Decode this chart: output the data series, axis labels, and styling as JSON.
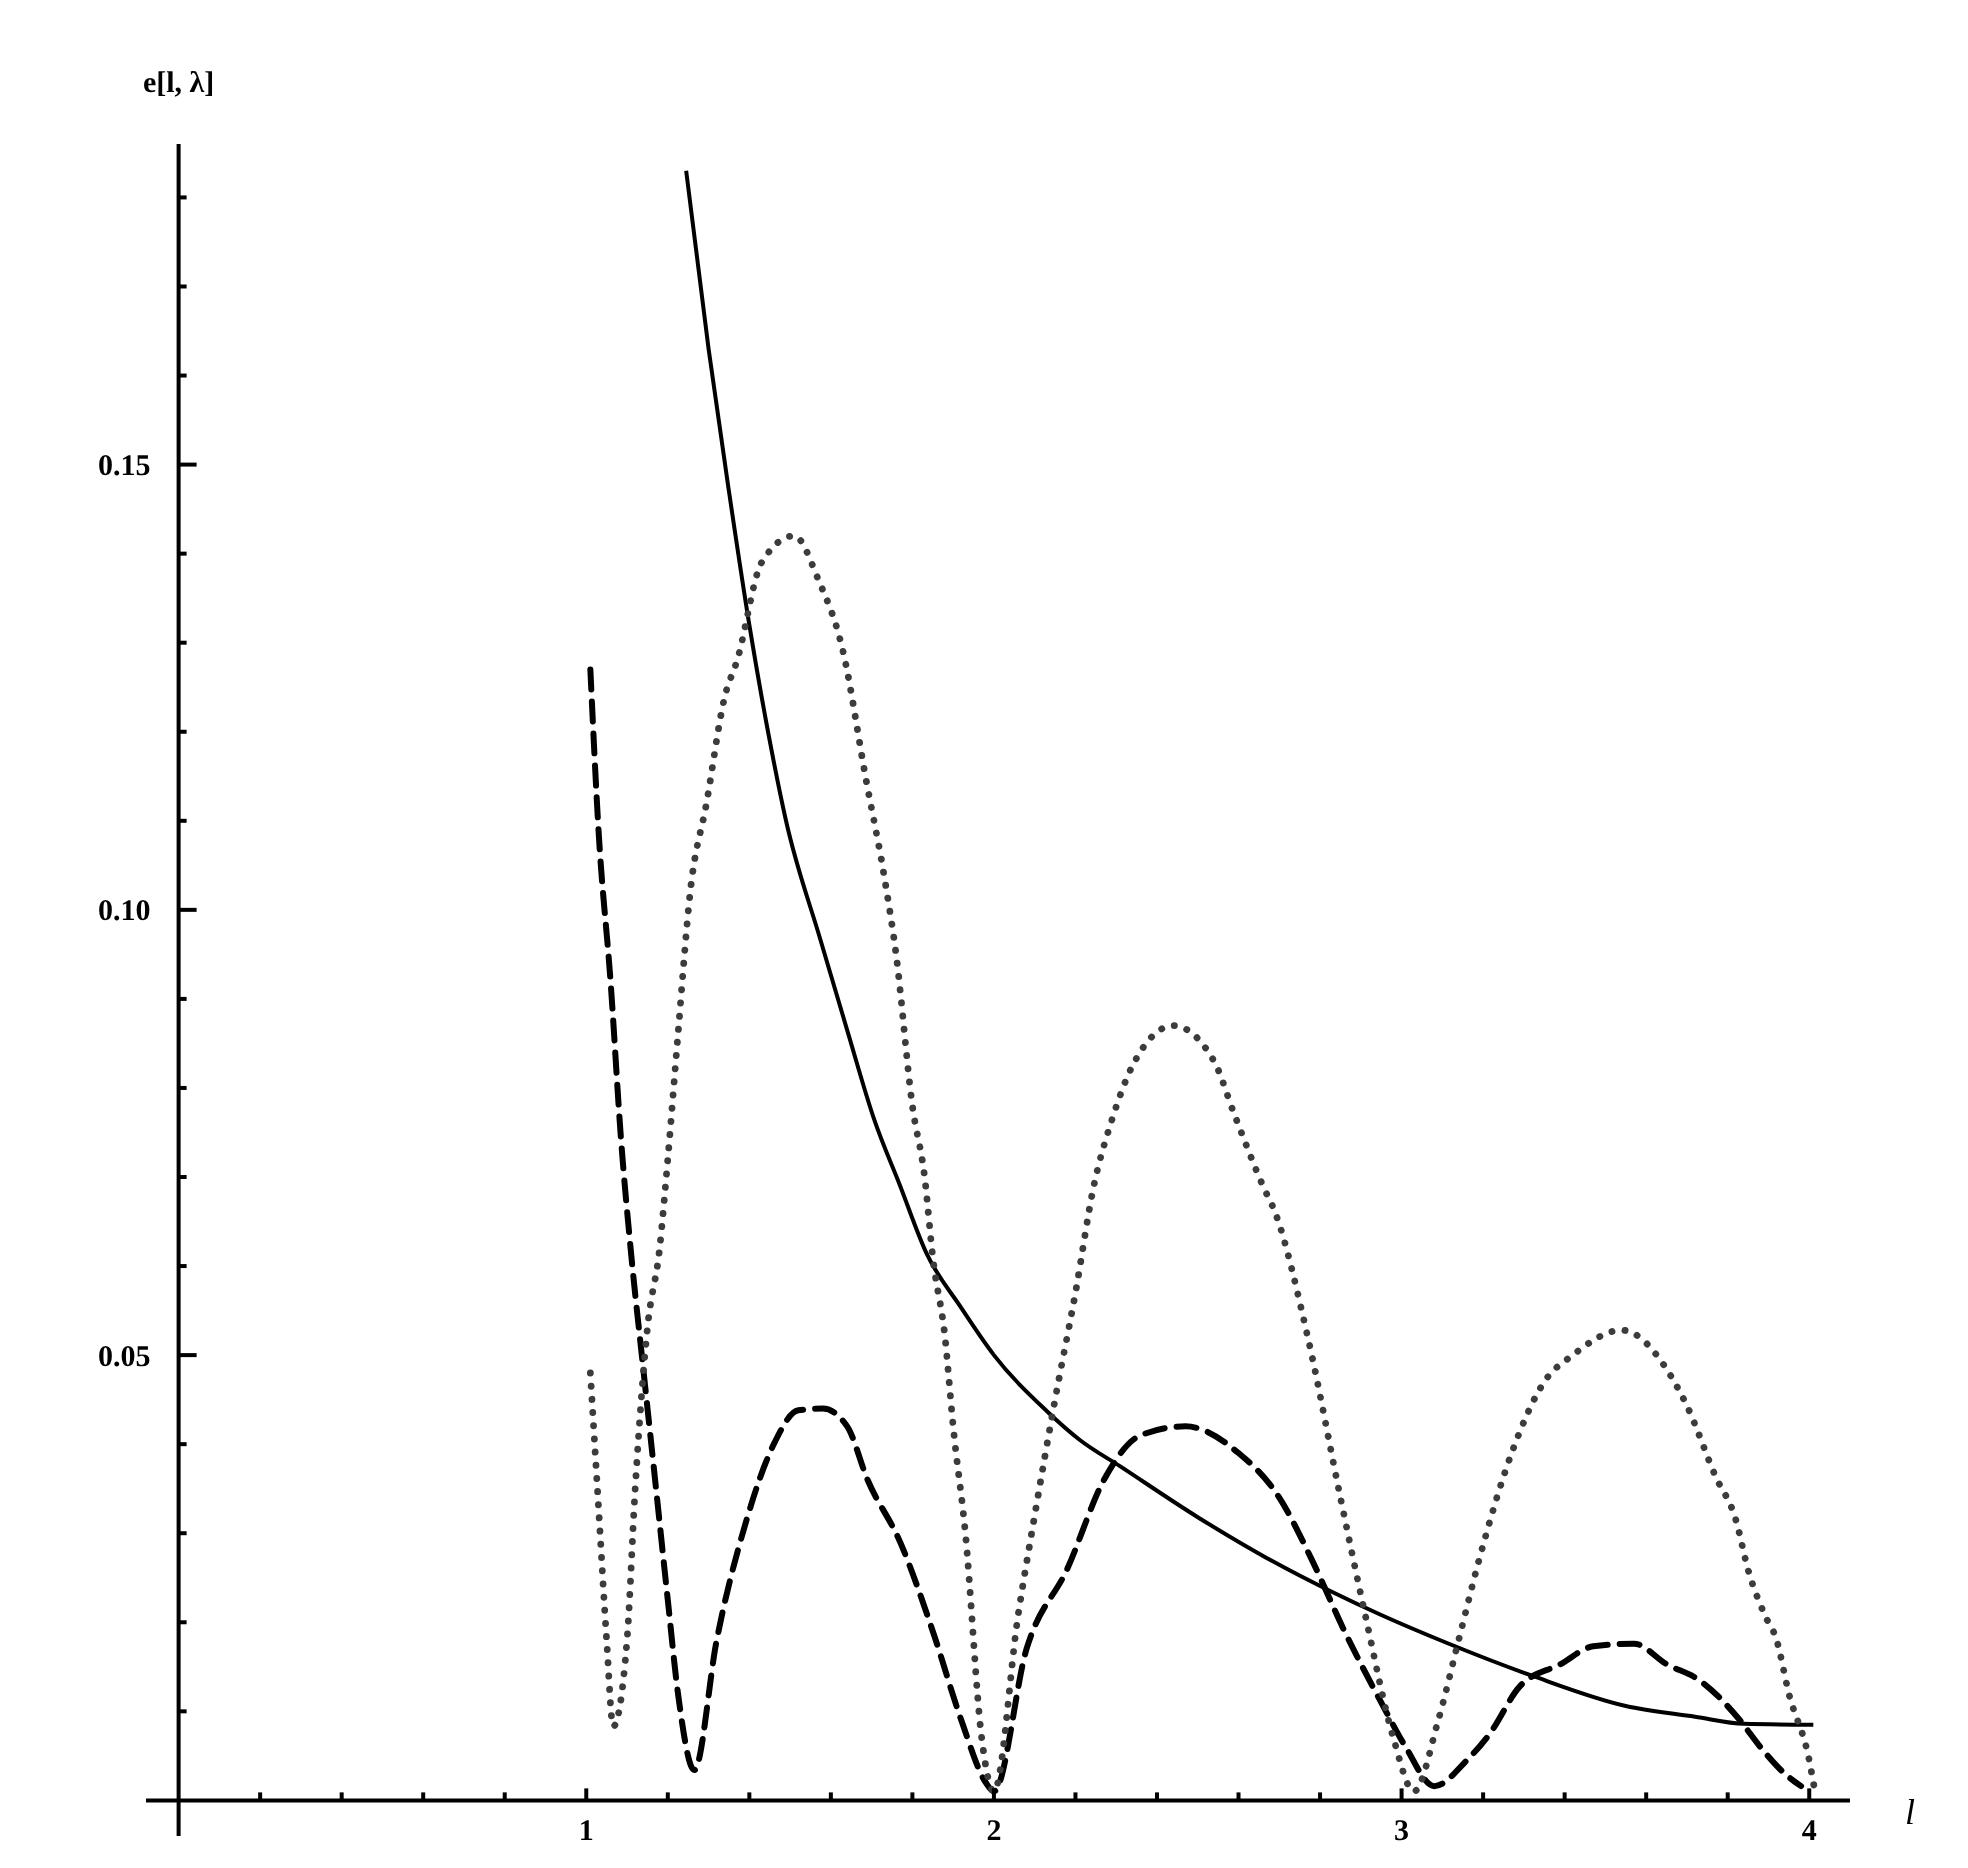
{
  "chart_data": {
    "type": "line",
    "xlabel": "l",
    "ylabel": "e[l, λ]",
    "xlim": [
      -0.08,
      4.1
    ],
    "ylim": [
      -0.004,
      0.186
    ],
    "xticks": [
      {
        "value": 0.2,
        "label": null
      },
      {
        "value": 0.4,
        "label": null
      },
      {
        "value": 0.6,
        "label": null
      },
      {
        "value": 0.8,
        "label": null
      },
      1,
      {
        "value": 1.2,
        "label": null
      },
      {
        "value": 1.4,
        "label": null
      },
      {
        "value": 1.6,
        "label": null
      },
      {
        "value": 1.8,
        "label": null
      },
      2,
      {
        "value": 2.2,
        "label": null
      },
      {
        "value": 2.4,
        "label": null
      },
      {
        "value": 2.6,
        "label": null
      },
      {
        "value": 2.8,
        "label": null
      },
      3,
      {
        "value": 3.2,
        "label": null
      },
      {
        "value": 3.4,
        "label": null
      },
      {
        "value": 3.6,
        "label": null
      },
      {
        "value": 3.8,
        "label": null
      },
      4
    ],
    "yticks": [
      {
        "value": 0.01,
        "label": null
      },
      {
        "value": 0.02,
        "label": null
      },
      {
        "value": 0.03,
        "label": null
      },
      {
        "value": 0.04,
        "label": null
      },
      {
        "value": 0.05,
        "label": "0.05"
      },
      {
        "value": 0.06,
        "label": null
      },
      {
        "value": 0.07,
        "label": null
      },
      {
        "value": 0.08,
        "label": null
      },
      {
        "value": 0.09,
        "label": null
      },
      {
        "value": 0.1,
        "label": "0.10"
      },
      {
        "value": 0.11,
        "label": null
      },
      {
        "value": 0.12,
        "label": null
      },
      {
        "value": 0.13,
        "label": null
      },
      {
        "value": 0.14,
        "label": null
      },
      0.15,
      {
        "value": 0.16,
        "label": null
      },
      {
        "value": 0.17,
        "label": null
      },
      {
        "value": 0.18,
        "label": null
      }
    ],
    "series": [
      {
        "color": "#000000",
        "line_style": "solid",
        "x": [
          1.245,
          1.3,
          1.35,
          1.4,
          1.45,
          1.49,
          1.574,
          1.64,
          1.706,
          1.77,
          1.835,
          1.917,
          2.0,
          2.13,
          2.21,
          2.31,
          2.5,
          2.67,
          2.83,
          2.946,
          3.11,
          3.32,
          3.55,
          3.72,
          3.84,
          4.01
        ],
        "values": [
          0.183,
          0.163,
          0.147,
          0.132,
          0.119,
          0.11,
          0.0967,
          0.0865,
          0.0765,
          0.069,
          0.0614,
          0.0555,
          0.05,
          0.0437,
          0.0405,
          0.0375,
          0.0318,
          0.0272,
          0.0234,
          0.0209,
          0.0177,
          0.014,
          0.0106,
          0.0094,
          0.0086,
          0.0085
        ]
      },
      {
        "color": "#000000",
        "line_style": "dashed",
        "x": [
          1.01,
          1.03,
          1.06,
          1.085,
          1.11,
          1.14,
          1.17,
          1.2,
          1.225,
          1.265,
          1.32,
          1.39,
          1.46,
          1.52,
          1.58,
          1.64,
          1.69,
          1.77,
          1.85,
          1.92,
          1.98,
          2.0,
          2.08,
          2.18,
          2.27,
          2.36,
          2.47,
          2.6,
          2.7,
          2.78,
          2.86,
          2.95,
          3.01,
          3.08,
          3.16,
          3.215,
          3.29,
          3.39,
          3.47,
          3.57,
          3.65,
          3.73,
          3.83,
          3.88,
          3.94,
          3.98
        ],
        "values": [
          0.127,
          0.109,
          0.0917,
          0.0744,
          0.0614,
          0.0484,
          0.0355,
          0.0225,
          0.012,
          0.0034,
          0.018,
          0.031,
          0.04,
          0.0438,
          0.044,
          0.042,
          0.036,
          0.029,
          0.019,
          0.009,
          0.002,
          0.001,
          0.017,
          0.026,
          0.036,
          0.041,
          0.042,
          0.039,
          0.034,
          0.027,
          0.019,
          0.011,
          0.006,
          0.0016,
          0.0045,
          0.0074,
          0.0128,
          0.0153,
          0.0173,
          0.0176,
          0.0153,
          0.0135,
          0.009,
          0.006,
          0.003,
          0.0016
        ]
      },
      {
        "color": "#3c3c3c",
        "line_style": "dotted",
        "x": [
          1.01,
          1.03,
          1.05,
          1.066,
          1.1,
          1.12,
          1.15,
          1.18,
          1.2,
          1.225,
          1.255,
          1.295,
          1.34,
          1.37,
          1.43,
          1.51,
          1.57,
          1.63,
          1.686,
          1.73,
          1.76,
          1.8,
          1.83,
          1.85,
          1.88,
          1.9,
          1.93,
          1.97,
          2.0,
          2.06,
          2.1,
          2.15,
          2.2,
          2.245,
          2.29,
          2.34,
          2.44,
          2.54,
          2.59,
          2.66,
          2.69,
          2.77,
          2.85,
          2.91,
          2.98,
          3.03,
          3.09,
          3.14,
          3.19,
          3.27,
          3.35,
          3.42,
          3.54,
          3.66,
          3.7,
          3.77,
          3.82,
          3.85,
          3.89,
          3.92,
          3.95,
          4.0,
          4.015
        ],
        "values": [
          0.048,
          0.033,
          0.018,
          0.0083,
          0.018,
          0.035,
          0.053,
          0.062,
          0.072,
          0.086,
          0.102,
          0.112,
          0.124,
          0.128,
          0.139,
          0.142,
          0.137,
          0.129,
          0.1147,
          0.104,
          0.095,
          0.078,
          0.07,
          0.061,
          0.052,
          0.042,
          0.03,
          0.007,
          0.001,
          0.021,
          0.032,
          0.045,
          0.057,
          0.069,
          0.0765,
          0.0825,
          0.087,
          0.083,
          0.077,
          0.069,
          0.066,
          0.052,
          0.034,
          0.021,
          0.007,
          0.001,
          0.009,
          0.018,
          0.027,
          0.039,
          0.047,
          0.05,
          0.0528,
          0.0477,
          0.0443,
          0.0364,
          0.0315,
          0.0259,
          0.0209,
          0.018,
          0.012,
          0.0045,
          0.0007
        ]
      }
    ]
  }
}
